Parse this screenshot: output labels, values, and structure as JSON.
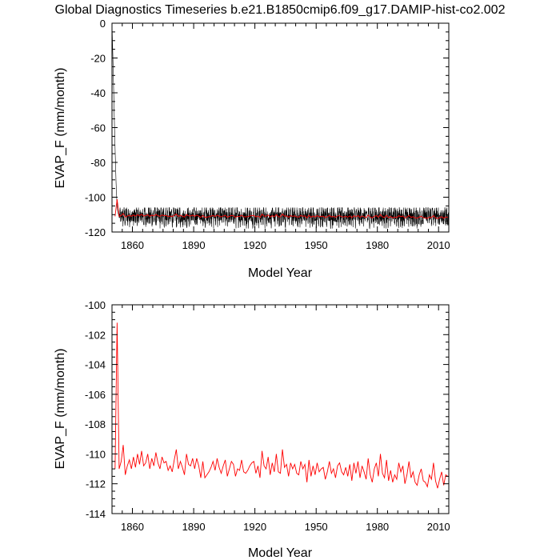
{
  "title": "Global Diagnostics Timeseries b.e21.B1850cmip6.f09_g17.DAMIP-hist-co2.002",
  "colors": {
    "monthly": "#000000",
    "annual": "#ff0000",
    "axes": "#000000"
  },
  "chart_data": [
    {
      "type": "line",
      "xlabel": "Model Year",
      "ylabel": "EVAP_F (mm/month)",
      "xlim": [
        1850,
        2015
      ],
      "ylim": [
        -120,
        0
      ],
      "xticks": [
        "1860",
        "1890",
        "1920",
        "1950",
        "1980",
        "2010"
      ],
      "yticks": [
        "0",
        "-20",
        "-40",
        "-60",
        "-80",
        "-100",
        "-120"
      ],
      "series": [
        {
          "color": "#000000",
          "description_of_values": "monthly values, dropping from 0 in 1850 to about -110 by 1853, then oscillating between about -118 and -106",
          "x": [
            1850.0,
            1850.4,
            1850.8,
            1851.2,
            1851.6,
            1852.0,
            1852.4,
            1852.8,
            1853.2,
            1853.6
          ],
          "values": [
            0,
            -18,
            -38,
            -58,
            -76,
            -92,
            -103,
            -108,
            -110,
            -112
          ],
          "oscillation": {
            "center": -111,
            "min": -118,
            "max": -106,
            "start_year": 1853,
            "end_year": 2015,
            "step_year": 0.0833
          }
        },
        {
          "color": "#ff0000",
          "description_of_values": "annual mean",
          "ref": "annual"
        }
      ]
    },
    {
      "type": "line",
      "xlabel": "Model Year",
      "ylabel": "EVAP_F (mm/month)",
      "xlim": [
        1850,
        2015
      ],
      "ylim": [
        -114,
        -100
      ],
      "xticks": [
        "1860",
        "1890",
        "1920",
        "1950",
        "1980",
        "2010"
      ],
      "yticks": [
        "-100",
        "-102",
        "-104",
        "-106",
        "-108",
        "-110",
        "-112",
        "-114"
      ],
      "series": [
        {
          "color": "#ff0000",
          "ref": "annual"
        }
      ]
    }
  ],
  "annual": {
    "x_start": 1851.5,
    "x_step": 1,
    "values": [
      -111.0,
      -101.2,
      -111.0,
      -110.5,
      -109.4,
      -111.4,
      -110.8,
      -110.4,
      -111.0,
      -110.2,
      -110.9,
      -110.0,
      -110.7,
      -109.8,
      -110.8,
      -110.6,
      -110.0,
      -111.0,
      -110.3,
      -110.8,
      -109.9,
      -110.6,
      -111.0,
      -110.2,
      -110.6,
      -110.5,
      -111.1,
      -110.8,
      -111.2,
      -110.4,
      -109.7,
      -111.0,
      -110.5,
      -110.9,
      -111.4,
      -110.0,
      -110.7,
      -110.8,
      -110.3,
      -111.0,
      -110.3,
      -110.8,
      -111.6,
      -110.5,
      -111.6,
      -111.4,
      -111.2,
      -110.9,
      -110.5,
      -111.1,
      -110.3,
      -110.9,
      -111.3,
      -110.8,
      -110.4,
      -111.5,
      -111.0,
      -110.5,
      -110.7,
      -111.5,
      -111.0,
      -111.1,
      -110.4,
      -111.2,
      -111.3,
      -111.1,
      -110.8,
      -110.6,
      -110.5,
      -111.3,
      -110.8,
      -111.6,
      -109.8,
      -110.8,
      -111.0,
      -110.2,
      -111.4,
      -110.6,
      -111.2,
      -110.0,
      -111.2,
      -111.3,
      -109.7,
      -110.9,
      -110.7,
      -111.5,
      -110.6,
      -111.0,
      -110.7,
      -111.3,
      -111.4,
      -110.5,
      -111.0,
      -110.7,
      -111.9,
      -110.4,
      -111.5,
      -110.8,
      -111.4,
      -110.6,
      -111.2,
      -111.0,
      -110.9,
      -111.7,
      -111.2,
      -110.5,
      -111.3,
      -111.0,
      -111.6,
      -110.8,
      -110.6,
      -111.2,
      -111.4,
      -110.9,
      -111.5,
      -110.7,
      -111.8,
      -110.6,
      -111.3,
      -110.5,
      -111.6,
      -110.8,
      -111.2,
      -111.7,
      -110.3,
      -111.4,
      -111.9,
      -111.0,
      -110.6,
      -111.5,
      -110.0,
      -111.3,
      -111.6,
      -110.4,
      -111.8,
      -111.1,
      -111.9,
      -111.4,
      -111.7,
      -110.6,
      -111.2,
      -110.8,
      -112.0,
      -111.4,
      -110.5,
      -111.6,
      -111.2,
      -111.9,
      -112.1,
      -111.4,
      -111.0,
      -111.8,
      -111.9,
      -112.2,
      -111.4,
      -111.7,
      -110.6,
      -111.8,
      -112.3,
      -111.7,
      -111.2,
      -112.1,
      -111.4,
      -111.5
    ]
  }
}
